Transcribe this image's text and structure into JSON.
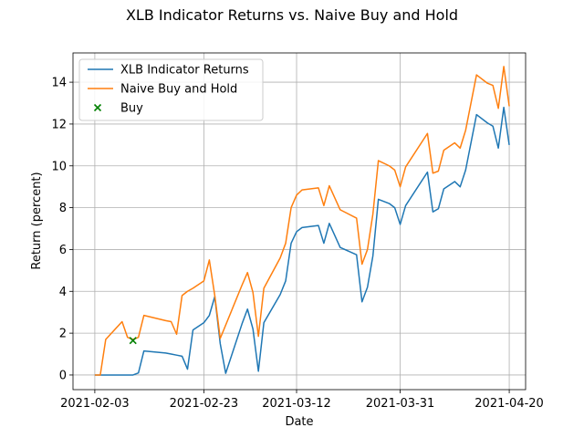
{
  "chart_data": {
    "type": "line",
    "title": "XLB Indicator Returns vs. Naive Buy and Hold",
    "xlabel": "Date",
    "ylabel": "Return (percent)",
    "x_tick_labels": [
      "2021-02-03",
      "2021-02-23",
      "2021-03-12",
      "2021-03-31",
      "2021-04-20"
    ],
    "y_ticks": [
      0,
      2,
      4,
      6,
      8,
      10,
      12,
      14
    ],
    "xlim": [
      "2021-01-30",
      "2021-04-23"
    ],
    "ylim": [
      -0.7,
      15.4
    ],
    "grid": true,
    "legend_position": "top-left",
    "series": [
      {
        "name": "XLB Indicator Returns",
        "kind": "line",
        "color": "#1f77b4",
        "points": [
          [
            "2021-02-03",
            0.0
          ],
          [
            "2021-02-04",
            0.0
          ],
          [
            "2021-02-05",
            0.0
          ],
          [
            "2021-02-08",
            0.0
          ],
          [
            "2021-02-09",
            0.0
          ],
          [
            "2021-02-10",
            0.0
          ],
          [
            "2021-02-11",
            0.1
          ],
          [
            "2021-02-12",
            1.15
          ],
          [
            "2021-02-16",
            1.05
          ],
          [
            "2021-02-17",
            1.0
          ],
          [
            "2021-02-18",
            0.95
          ],
          [
            "2021-02-19",
            0.9
          ],
          [
            "2021-02-20",
            0.28
          ],
          [
            "2021-02-21",
            2.15
          ],
          [
            "2021-02-23",
            2.5
          ],
          [
            "2021-02-24",
            2.85
          ],
          [
            "2021-02-25",
            3.75
          ],
          [
            "2021-02-26",
            1.5
          ],
          [
            "2021-02-27",
            0.08
          ],
          [
            "2021-03-02",
            2.45
          ],
          [
            "2021-03-03",
            3.15
          ],
          [
            "2021-03-04",
            2.2
          ],
          [
            "2021-03-05",
            0.18
          ],
          [
            "2021-03-06",
            2.5
          ],
          [
            "2021-03-09",
            3.85
          ],
          [
            "2021-03-10",
            4.5
          ],
          [
            "2021-03-11",
            6.3
          ],
          [
            "2021-03-12",
            6.85
          ],
          [
            "2021-03-13",
            7.05
          ],
          [
            "2021-03-16",
            7.15
          ],
          [
            "2021-03-17",
            6.3
          ],
          [
            "2021-03-18",
            7.25
          ],
          [
            "2021-03-20",
            6.1
          ],
          [
            "2021-03-23",
            5.75
          ],
          [
            "2021-03-24",
            3.5
          ],
          [
            "2021-03-25",
            4.2
          ],
          [
            "2021-03-26",
            5.7
          ],
          [
            "2021-03-27",
            8.4
          ],
          [
            "2021-03-29",
            8.2
          ],
          [
            "2021-03-30",
            8.0
          ],
          [
            "2021-03-31",
            7.2
          ],
          [
            "2021-04-01",
            8.1
          ],
          [
            "2021-04-05",
            9.7
          ],
          [
            "2021-04-06",
            7.8
          ],
          [
            "2021-04-07",
            7.95
          ],
          [
            "2021-04-08",
            8.9
          ],
          [
            "2021-04-10",
            9.25
          ],
          [
            "2021-04-11",
            9.0
          ],
          [
            "2021-04-12",
            9.8
          ],
          [
            "2021-04-14",
            12.45
          ],
          [
            "2021-04-16",
            12.05
          ],
          [
            "2021-04-17",
            11.9
          ],
          [
            "2021-04-18",
            10.85
          ],
          [
            "2021-04-19",
            12.8
          ],
          [
            "2021-04-20",
            11.0
          ]
        ]
      },
      {
        "name": "Naive Buy and Hold",
        "kind": "line",
        "color": "#ff7f0e",
        "points": [
          [
            "2021-02-03",
            0.0
          ],
          [
            "2021-02-04",
            0.0
          ],
          [
            "2021-02-05",
            1.7
          ],
          [
            "2021-02-08",
            2.55
          ],
          [
            "2021-02-09",
            1.8
          ],
          [
            "2021-02-10",
            1.7
          ],
          [
            "2021-02-11",
            1.8
          ],
          [
            "2021-02-12",
            2.85
          ],
          [
            "2021-02-16",
            2.6
          ],
          [
            "2021-02-17",
            2.55
          ],
          [
            "2021-02-18",
            1.95
          ],
          [
            "2021-02-19",
            3.8
          ],
          [
            "2021-02-20",
            4.0
          ],
          [
            "2021-02-21",
            4.15
          ],
          [
            "2021-02-23",
            4.5
          ],
          [
            "2021-02-24",
            5.5
          ],
          [
            "2021-02-25",
            3.8
          ],
          [
            "2021-02-26",
            1.75
          ],
          [
            "2021-03-02",
            4.3
          ],
          [
            "2021-03-03",
            4.9
          ],
          [
            "2021-03-04",
            3.95
          ],
          [
            "2021-03-05",
            1.85
          ],
          [
            "2021-03-06",
            4.15
          ],
          [
            "2021-03-09",
            5.6
          ],
          [
            "2021-03-10",
            6.3
          ],
          [
            "2021-03-11",
            8.0
          ],
          [
            "2021-03-12",
            8.6
          ],
          [
            "2021-03-13",
            8.85
          ],
          [
            "2021-03-16",
            8.95
          ],
          [
            "2021-03-17",
            8.1
          ],
          [
            "2021-03-18",
            9.05
          ],
          [
            "2021-03-20",
            7.9
          ],
          [
            "2021-03-23",
            7.5
          ],
          [
            "2021-03-24",
            5.3
          ],
          [
            "2021-03-25",
            6.0
          ],
          [
            "2021-03-26",
            7.7
          ],
          [
            "2021-03-27",
            10.25
          ],
          [
            "2021-03-29",
            10.0
          ],
          [
            "2021-03-30",
            9.8
          ],
          [
            "2021-03-31",
            9.0
          ],
          [
            "2021-04-01",
            9.95
          ],
          [
            "2021-04-05",
            11.55
          ],
          [
            "2021-04-06",
            9.65
          ],
          [
            "2021-04-07",
            9.75
          ],
          [
            "2021-04-08",
            10.75
          ],
          [
            "2021-04-10",
            11.1
          ],
          [
            "2021-04-11",
            10.85
          ],
          [
            "2021-04-12",
            11.7
          ],
          [
            "2021-04-14",
            14.35
          ],
          [
            "2021-04-16",
            13.95
          ],
          [
            "2021-04-17",
            13.85
          ],
          [
            "2021-04-18",
            12.75
          ],
          [
            "2021-04-19",
            14.75
          ],
          [
            "2021-04-20",
            12.85
          ]
        ]
      },
      {
        "name": "Buy",
        "kind": "scatter",
        "marker": "x",
        "color": "#008000",
        "points": [
          [
            "2021-02-10",
            1.65
          ]
        ]
      }
    ]
  }
}
